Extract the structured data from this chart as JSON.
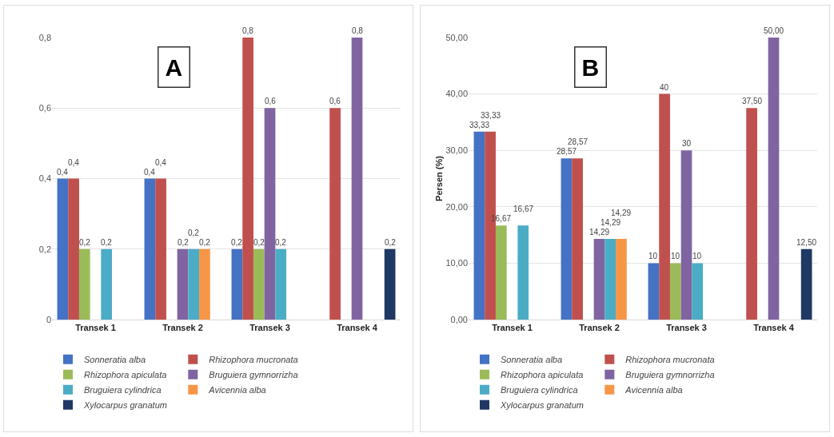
{
  "chart_data": [
    {
      "type": "bar",
      "title": "A",
      "categories": [
        "Transek 1",
        "Transek 2",
        "Transek 3",
        "Transek 4"
      ],
      "series": [
        {
          "name": "Sonneratia alba",
          "color": "#4472c4",
          "values": [
            0.4,
            0.4,
            0.2,
            null
          ],
          "value_labels": [
            "0,4",
            "0,4",
            "0,2",
            null
          ]
        },
        {
          "name": "Rhizophora mucronata",
          "color": "#c0504d",
          "values": [
            0.4,
            0.4,
            0.8,
            0.6
          ],
          "value_labels": [
            "0,4",
            "0,4",
            "0,8",
            "0,6"
          ]
        },
        {
          "name": "Rhizophora apiculata",
          "color": "#9bbb59",
          "values": [
            0.2,
            null,
            0.2,
            null
          ],
          "value_labels": [
            "0,2",
            null,
            "0,2",
            null
          ]
        },
        {
          "name": "Bruguiera gymnorrizha",
          "color": "#8064a2",
          "values": [
            null,
            0.2,
            0.6,
            0.8
          ],
          "value_labels": [
            null,
            "0,2",
            "0,6",
            "0,8"
          ]
        },
        {
          "name": "Bruguiera cylindrica",
          "color": "#4bacc6",
          "values": [
            0.2,
            0.2,
            0.2,
            null
          ],
          "value_labels": [
            "0,2",
            "0,2",
            "0,2",
            null
          ]
        },
        {
          "name": "Avicennia alba",
          "color": "#f79646",
          "values": [
            null,
            0.2,
            null,
            null
          ],
          "value_labels": [
            null,
            "0,2",
            null,
            null
          ]
        },
        {
          "name": "Xylocarpus granatum",
          "color": "#1f3864",
          "values": [
            null,
            null,
            null,
            0.2
          ],
          "value_labels": [
            null,
            null,
            null,
            "0,2"
          ]
        }
      ],
      "ylim": [
        0,
        0.8
      ],
      "yticks": [
        0,
        {
          "value": 0.2,
          "label": "0,2"
        },
        {
          "value": 0.4,
          "label": "0,4"
        },
        {
          "value": 0.6,
          "label": "0,6"
        },
        {
          "value": 0.8,
          "label": "0,8"
        }
      ],
      "grid": "y",
      "legend": "bottom"
    },
    {
      "type": "bar",
      "title": "B",
      "ylabel": "Persen (%)",
      "categories": [
        "Transek 1",
        "Transek 2",
        "Transek 3",
        "Transek 4"
      ],
      "series": [
        {
          "name": "Sonneratia alba",
          "color": "#4472c4",
          "values": [
            33.33,
            28.57,
            10,
            null
          ],
          "value_labels": [
            "33,33",
            "28,57",
            "10",
            null
          ]
        },
        {
          "name": "Rhizophora mucronata",
          "color": "#c0504d",
          "values": [
            33.33,
            28.57,
            40,
            37.5
          ],
          "value_labels": [
            "33,33",
            "28,57",
            "40",
            "37,50"
          ]
        },
        {
          "name": "Rhizophora apiculata",
          "color": "#9bbb59",
          "values": [
            16.67,
            null,
            10,
            null
          ],
          "value_labels": [
            "16,67",
            null,
            "10",
            null
          ]
        },
        {
          "name": "Bruguiera gymnorrizha",
          "color": "#8064a2",
          "values": [
            null,
            14.29,
            30,
            50
          ],
          "value_labels": [
            null,
            "14,29",
            "30",
            "50,00"
          ]
        },
        {
          "name": "Bruguiera cylindrica",
          "color": "#4bacc6",
          "values": [
            16.67,
            14.29,
            10,
            null
          ],
          "value_labels": [
            "16,67",
            "14,29",
            "10",
            null
          ]
        },
        {
          "name": "Avicennia alba",
          "color": "#f79646",
          "values": [
            null,
            14.29,
            null,
            null
          ],
          "value_labels": [
            null,
            "14,29",
            null,
            null
          ]
        },
        {
          "name": "Xylocarpus granatum",
          "color": "#1f3864",
          "values": [
            null,
            null,
            null,
            12.5
          ],
          "value_labels": [
            null,
            null,
            null,
            "12,50"
          ]
        }
      ],
      "ylim": [
        0,
        50
      ],
      "yticks": [
        {
          "value": 0,
          "label": "0,00"
        },
        {
          "value": 10,
          "label": "10,00"
        },
        {
          "value": 20,
          "label": "20,00"
        },
        {
          "value": 30,
          "label": "30,00"
        },
        {
          "value": 40,
          "label": "40,00"
        },
        {
          "value": 50,
          "label": "50,00"
        }
      ],
      "grid": "y",
      "legend": "bottom"
    }
  ]
}
